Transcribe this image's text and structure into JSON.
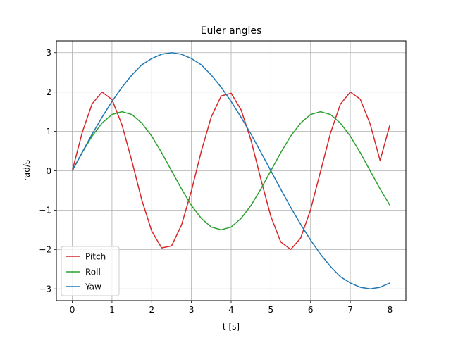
{
  "chart_data": {
    "type": "line",
    "title": "Euler angles",
    "xlabel": "t [s]",
    "ylabel": "rad/s",
    "xlim": [
      -0.4,
      8.4
    ],
    "ylim": [
      -3.3,
      3.3
    ],
    "xticks": [
      0,
      1,
      2,
      3,
      4,
      5,
      6,
      7,
      8
    ],
    "yticks": [
      -3,
      -2,
      -1,
      0,
      1,
      2,
      3
    ],
    "ytick_labels": [
      "−3",
      "−2",
      "−1",
      "0",
      "1",
      "2",
      "3"
    ],
    "xtick_labels": [
      "0",
      "1",
      "2",
      "3",
      "4",
      "5",
      "6",
      "7",
      "8"
    ],
    "grid": true,
    "legend_position": "lower-left",
    "x": [
      0,
      0.25,
      0.5,
      0.75,
      1,
      1.25,
      1.5,
      1.75,
      2,
      2.25,
      2.5,
      2.75,
      3,
      3.25,
      3.5,
      3.75,
      4,
      4.25,
      4.5,
      4.75,
      5,
      5.25,
      5.5,
      5.75,
      6,
      6.25,
      6.5,
      6.75,
      7,
      7.25,
      7.5,
      7.75,
      8
    ],
    "series": [
      {
        "name": "Pitch",
        "color": "#d62728",
        "values": [
          0,
          0.97,
          1.7,
          2.0,
          1.81,
          1.17,
          0.25,
          -0.74,
          -1.53,
          -1.96,
          -1.91,
          -1.38,
          -0.51,
          0.5,
          1.37,
          1.9,
          1.97,
          1.55,
          0.78,
          -0.22,
          -1.16,
          -1.81,
          -2.0,
          -1.71,
          -0.99,
          -0.02,
          0.95,
          1.69,
          2.0,
          1.82,
          1.19,
          0.26,
          1.17
        ]
      },
      {
        "name": "Roll",
        "color": "#2ca02c",
        "values": [
          0,
          0.46,
          0.88,
          1.21,
          1.43,
          1.5,
          1.43,
          1.21,
          0.88,
          0.46,
          0,
          -0.46,
          -0.88,
          -1.21,
          -1.43,
          -1.5,
          -1.43,
          -1.21,
          -0.88,
          -0.46,
          0,
          0.46,
          0.88,
          1.21,
          1.43,
          1.5,
          1.43,
          1.21,
          0.88,
          0.46,
          0,
          -0.46,
          -0.88
        ]
      },
      {
        "name": "Yaw",
        "color": "#1f77b4",
        "values": [
          0,
          0.47,
          0.93,
          1.36,
          1.76,
          2.12,
          2.43,
          2.69,
          2.85,
          2.96,
          3.0,
          2.96,
          2.85,
          2.69,
          2.43,
          2.12,
          1.76,
          1.36,
          0.93,
          0.47,
          0,
          -0.47,
          -0.93,
          -1.36,
          -1.76,
          -2.12,
          -2.43,
          -2.69,
          -2.85,
          -2.96,
          -3.0,
          -2.96,
          -2.85
        ]
      }
    ]
  }
}
